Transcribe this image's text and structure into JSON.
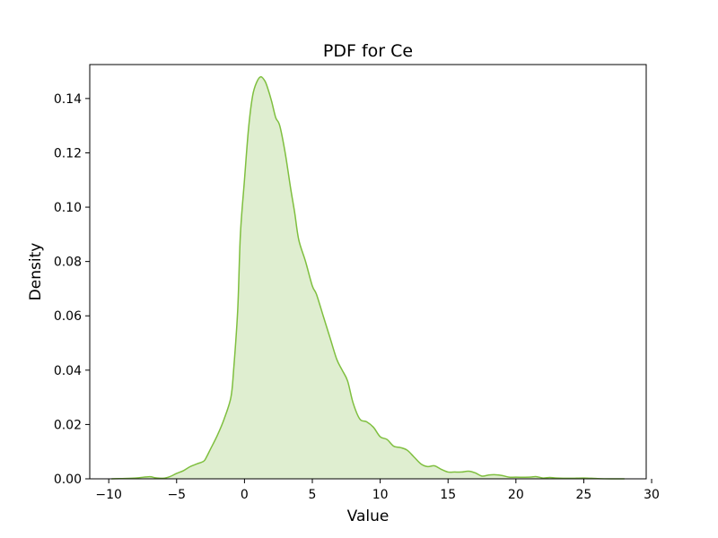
{
  "chart_data": {
    "type": "area",
    "title": "PDF for Ce",
    "xlabel": "Value",
    "ylabel": "Density",
    "xlim": [
      -11.4,
      29.6
    ],
    "ylim": [
      0,
      0.1525
    ],
    "x_ticks": [
      -10,
      -5,
      0,
      5,
      10,
      15,
      20,
      25,
      30
    ],
    "x_tick_labels": [
      "−10",
      "−5",
      "0",
      "5",
      "10",
      "15",
      "20",
      "25",
      "30"
    ],
    "y_ticks": [
      0.0,
      0.02,
      0.04,
      0.06,
      0.08,
      0.1,
      0.12,
      0.14
    ],
    "y_tick_labels": [
      "0.00",
      "0.02",
      "0.04",
      "0.06",
      "0.08",
      "0.10",
      "0.12",
      "0.14"
    ],
    "grid": false,
    "legend": "none",
    "colors": {
      "line": "#7fbf3f",
      "fill": "#dfeed0",
      "axes": "#000000"
    },
    "series": [
      {
        "x": [
          -9.8,
          -9.0,
          -8.0,
          -7.0,
          -6.6,
          -6.0,
          -5.5,
          -5.0,
          -4.5,
          -4.0,
          -3.5,
          -3.0,
          -2.8,
          -2.5,
          -2.0,
          -1.5,
          -1.0,
          -0.8,
          -0.5,
          -0.3,
          0.0,
          0.3,
          0.6,
          0.9,
          1.2,
          1.5,
          1.7,
          2.0,
          2.3,
          2.6,
          3.0,
          3.4,
          3.7,
          4.0,
          4.5,
          5.0,
          5.3,
          5.8,
          6.3,
          6.8,
          7.2,
          7.6,
          8.0,
          8.5,
          9.0,
          9.5,
          10.0,
          10.5,
          11.0,
          11.5,
          12.0,
          12.5,
          13.0,
          13.5,
          14.0,
          14.5,
          15.0,
          15.5,
          16.0,
          16.5,
          17.0,
          17.5,
          18.0,
          18.5,
          19.0,
          19.5,
          20.0,
          21.0,
          21.5,
          22.0,
          22.5,
          23.0,
          24.0,
          25.0,
          26.0,
          27.0,
          28.0
        ],
        "y": [
          0.0,
          0.0001,
          0.0003,
          0.0008,
          0.0004,
          0.0002,
          0.0008,
          0.002,
          0.003,
          0.0045,
          0.0055,
          0.0065,
          0.008,
          0.011,
          0.016,
          0.022,
          0.03,
          0.04,
          0.062,
          0.09,
          0.11,
          0.129,
          0.141,
          0.146,
          0.148,
          0.1465,
          0.144,
          0.139,
          0.133,
          0.13,
          0.12,
          0.107,
          0.098,
          0.088,
          0.08,
          0.071,
          0.068,
          0.06,
          0.052,
          0.044,
          0.04,
          0.036,
          0.028,
          0.022,
          0.021,
          0.019,
          0.0155,
          0.0145,
          0.012,
          0.0115,
          0.0105,
          0.008,
          0.0055,
          0.0045,
          0.0048,
          0.0035,
          0.0025,
          0.0025,
          0.0025,
          0.0028,
          0.0022,
          0.001,
          0.0014,
          0.0015,
          0.0012,
          0.0006,
          0.0006,
          0.0006,
          0.0008,
          0.0003,
          0.0005,
          0.0003,
          0.0002,
          0.0003,
          0.0001,
          0.0,
          0.0
        ]
      }
    ]
  }
}
